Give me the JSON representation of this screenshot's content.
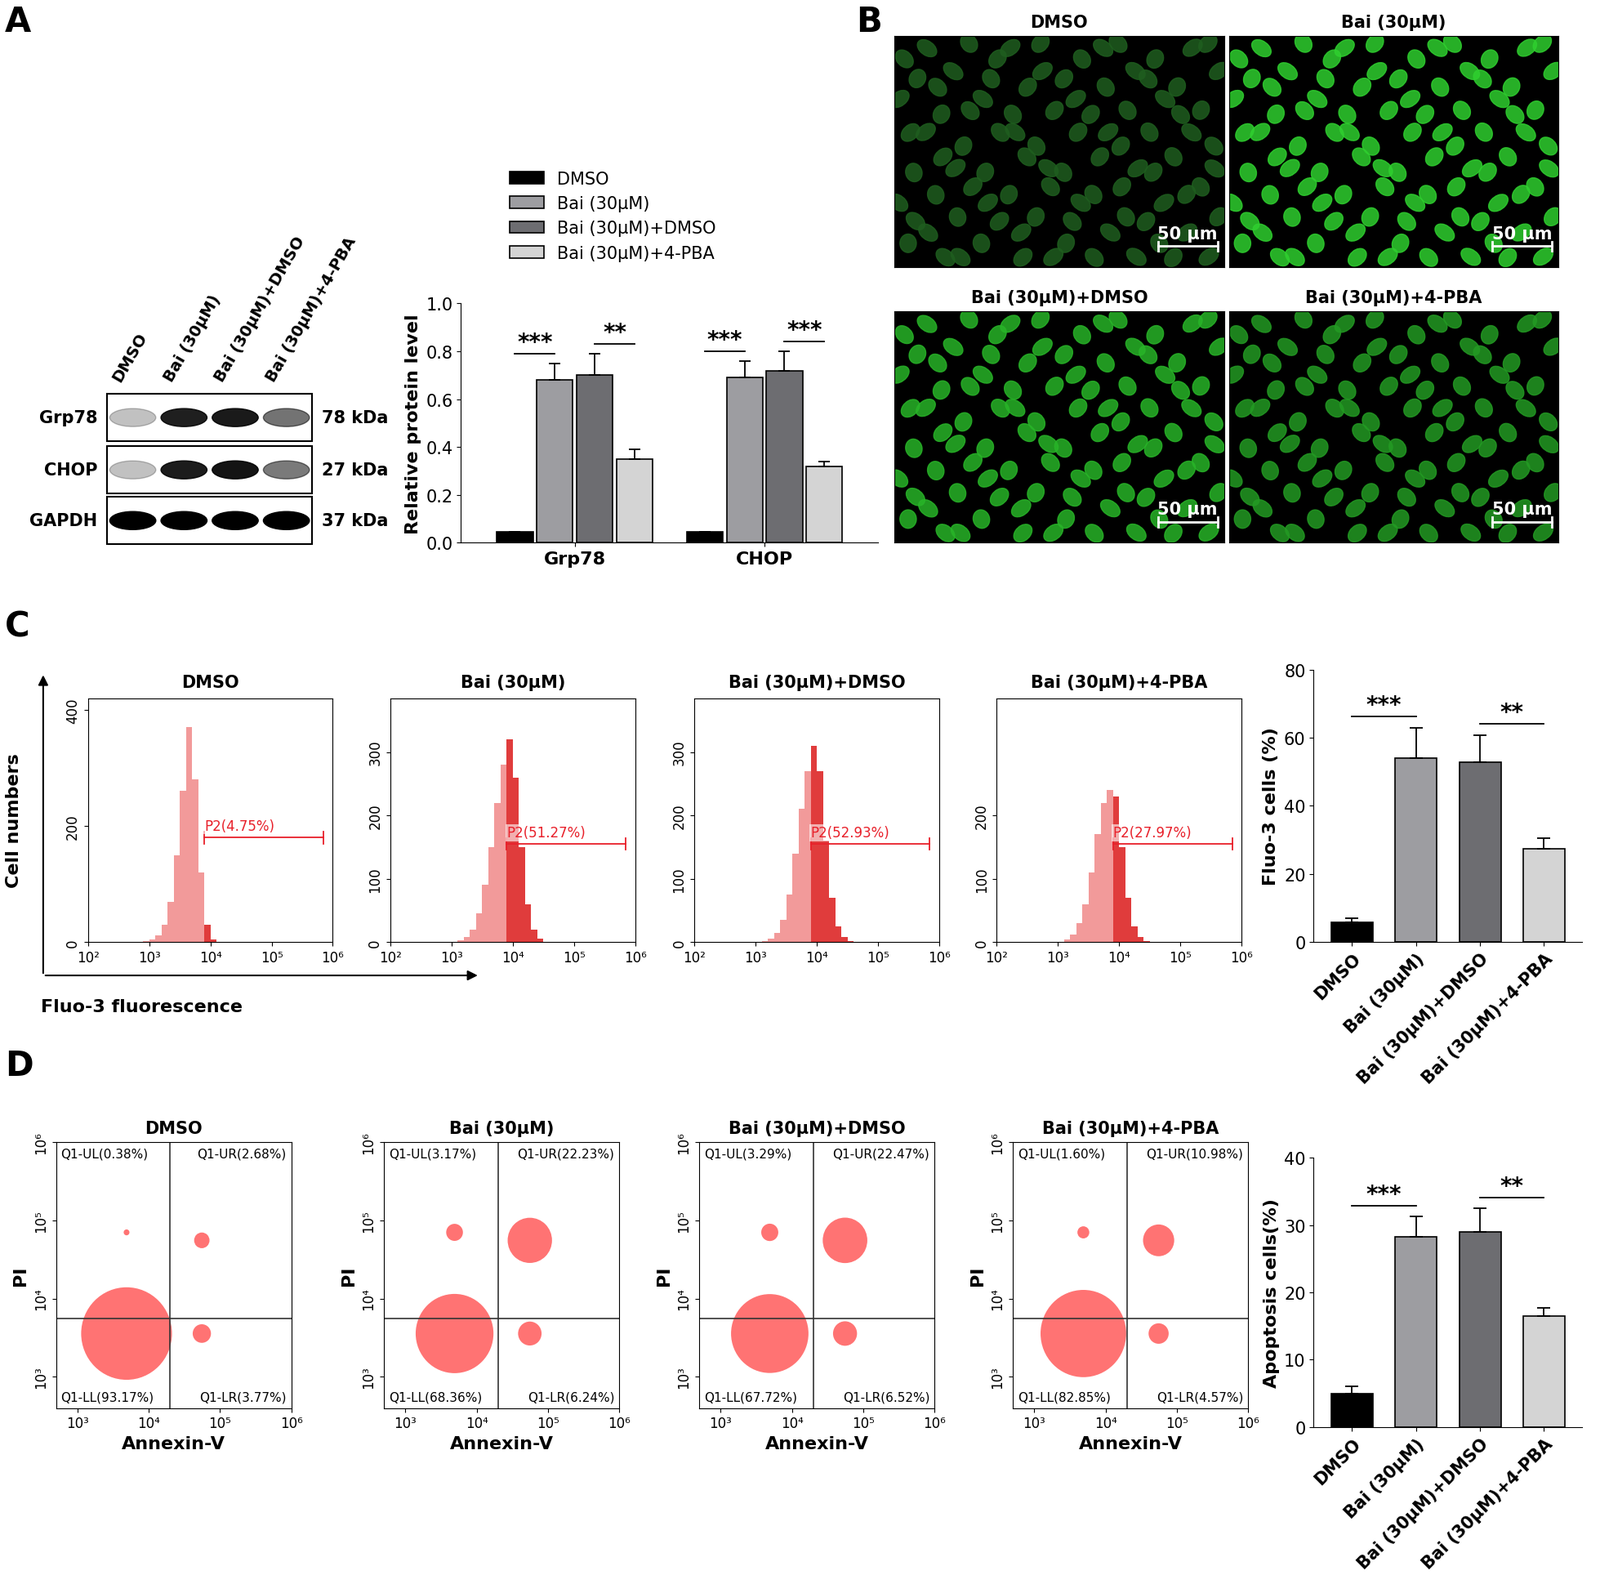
{
  "chart_data": [
    {
      "panel": "A",
      "type": "blot",
      "lanes": [
        "DMSO",
        "Bai (30μM)",
        "Bai (30μM)+DMSO",
        "Bai (30μM)+4-PBA"
      ],
      "rows": [
        {
          "name": "Grp78",
          "size": "78 kDa"
        },
        {
          "name": "CHOP",
          "size": "27 kDa"
        },
        {
          "name": "GAPDH",
          "size": "37 kDa"
        }
      ]
    },
    {
      "type": "bar",
      "ylabel": "Relative protein level",
      "categories": [
        "Grp78",
        "CHOP"
      ],
      "series": [
        {
          "name": "DMSO",
          "color": "#000000",
          "values": [
            0.045,
            0.045
          ],
          "errors": [
            0.0,
            0.0
          ]
        },
        {
          "name": "Bai (30μM)",
          "color": "#9d9da1",
          "values": [
            0.68,
            0.69
          ],
          "errors": [
            0.07,
            0.07
          ]
        },
        {
          "name": "Bai (30μM)+DMSO",
          "color": "#6d6d71",
          "values": [
            0.7,
            0.72
          ],
          "errors": [
            0.09,
            0.08
          ]
        },
        {
          "name": "Bai (30μM)+4-PBA",
          "color": "#d4d4d4",
          "values": [
            0.35,
            0.32
          ],
          "errors": [
            0.04,
            0.02
          ]
        }
      ],
      "ylim": [
        0,
        1.0
      ],
      "yticks": [
        {
          "value": 0,
          "label": "0.0"
        },
        {
          "value": 0.2,
          "label": "0.2"
        },
        {
          "value": 0.4,
          "label": "0.4"
        },
        {
          "value": 0.6,
          "label": "0.6"
        },
        {
          "value": 0.8,
          "label": "0.8"
        },
        {
          "value": 1.0,
          "label": "1.0"
        }
      ],
      "legend": "upper left",
      "significance": [
        {
          "category": "Grp78",
          "between": [
            "DMSO",
            "Bai (30μM)"
          ],
          "label": "***"
        },
        {
          "category": "Grp78",
          "between": [
            "Bai (30μM)+DMSO",
            "Bai (30μM)+4-PBA"
          ],
          "label": "**"
        },
        {
          "category": "CHOP",
          "between": [
            "DMSO",
            "Bai (30μM)"
          ],
          "label": "***"
        },
        {
          "category": "CHOP",
          "between": [
            "Bai (30μM)+DMSO",
            "Bai (30μM)+4-PBA"
          ],
          "label": "***"
        }
      ]
    },
    {
      "panel": "B",
      "type": "image",
      "images": [
        {
          "title": "DMSO",
          "color": "#1f5e1f",
          "scale_bar": "50 μm"
        },
        {
          "title": "Bai (30μM)",
          "color": "#2fcf2f",
          "scale_bar": "50 μm"
        },
        {
          "title": "Bai (30μM)+DMSO",
          "color": "#28b428",
          "scale_bar": "50 μm"
        },
        {
          "title": "Bai (30μM)+4-PBA",
          "color": "#239a23",
          "scale_bar": "50 μm"
        }
      ]
    },
    {
      "panel": "C",
      "type": "histogram",
      "color": "#f29a9a",
      "xlabel": "Fluo-3 fluorescence",
      "ylabel": "Cell numbers",
      "log": "x",
      "xlim": [
        100,
        1000000
      ],
      "xticks": [
        {
          "value": 100,
          "label": "10²"
        },
        {
          "value": 1000,
          "label": "10³"
        },
        {
          "value": 10000,
          "label": "10⁴"
        },
        {
          "value": 100000,
          "label": "10⁵"
        },
        {
          "value": 1000000,
          "label": "10⁶"
        }
      ],
      "bins": [
        631,
        794,
        1000,
        1259,
        1585,
        1995,
        2512,
        3162,
        3981,
        5012,
        6310,
        7943,
        10000,
        12589,
        15849,
        19953,
        25119,
        31623,
        39811,
        50119,
        63096
      ],
      "plots": [
        {
          "title": "DMSO",
          "ylim": [
            0,
            420
          ],
          "yticks": [
            0,
            200,
            400
          ],
          "counts": [
            0,
            2,
            5,
            12,
            30,
            70,
            150,
            260,
            370,
            280,
            120,
            30,
            5,
            1,
            0,
            0,
            0,
            0,
            0,
            0
          ],
          "gate": {
            "label": "P2(4.75%)",
            "range": [
              7943,
              700000
            ],
            "y": 180
          }
        },
        {
          "title": "Bai (30μM)",
          "ylim": [
            0,
            385
          ],
          "yticks": [
            0,
            100,
            200,
            300
          ],
          "counts": [
            0,
            0,
            1,
            3,
            8,
            20,
            45,
            90,
            150,
            220,
            280,
            320,
            260,
            150,
            60,
            20,
            5,
            1,
            0,
            0
          ],
          "gate": {
            "label": "P2(51.27%)",
            "range": [
              7943,
              700000
            ],
            "y": 155
          }
        },
        {
          "title": "Bai (30μM)+DMSO",
          "ylim": [
            0,
            385
          ],
          "yticks": [
            0,
            100,
            200,
            300
          ],
          "counts": [
            0,
            0,
            0,
            2,
            6,
            15,
            35,
            75,
            140,
            210,
            270,
            310,
            270,
            160,
            70,
            25,
            8,
            2,
            0,
            0
          ],
          "gate": {
            "label": "P2(52.93%)",
            "range": [
              7943,
              700000
            ],
            "y": 155
          }
        },
        {
          "title": "Bai (30μM)+4-PBA",
          "ylim": [
            0,
            385
          ],
          "yticks": [
            0,
            100,
            200
          ],
          "counts": [
            0,
            0,
            1,
            4,
            12,
            30,
            60,
            110,
            170,
            220,
            240,
            230,
            150,
            70,
            25,
            8,
            2,
            0,
            0,
            0
          ],
          "gate": {
            "label": "P2(27.97%)",
            "range": [
              7943,
              700000
            ],
            "y": 155
          }
        }
      ]
    },
    {
      "type": "bar",
      "ylabel": "Fluo-3 cells (%)",
      "categories": [
        "DMSO",
        "Bai (30μM)",
        "Bai (30μM)+DMSO",
        "Bai (30μM)+4-PBA"
      ],
      "values": [
        5.8,
        54,
        52.8,
        27.5
      ],
      "errors": [
        1.2,
        9,
        8,
        3
      ],
      "colors": [
        "#000000",
        "#9d9da1",
        "#6d6d71",
        "#d4d4d4"
      ],
      "ylim": [
        0,
        80
      ],
      "yticks": [
        0,
        20,
        40,
        60,
        80
      ],
      "significance": [
        {
          "between": [
            "DMSO",
            "Bai (30μM)"
          ],
          "label": "***"
        },
        {
          "between": [
            "Bai (30μM)+DMSO",
            "Bai (30μM)+4-PBA"
          ],
          "label": "**"
        }
      ]
    },
    {
      "panel": "D",
      "type": "scatter",
      "color": "#ff0000",
      "log": true,
      "xlabel": "Annexin-V",
      "ylabel": "PI",
      "xlim": [
        500,
        1000000
      ],
      "ylim": [
        400,
        1000000
      ],
      "xticks": [
        {
          "value": 1000,
          "label": "10³"
        },
        {
          "value": 10000,
          "label": "10⁴"
        },
        {
          "value": 100000,
          "label": "10⁵"
        },
        {
          "value": 1000000,
          "label": "10⁶"
        }
      ],
      "yticks": [
        {
          "value": 1000,
          "label": "10³"
        },
        {
          "value": 10000,
          "label": "10⁴"
        },
        {
          "value": 100000,
          "label": "10⁵"
        },
        {
          "value": 1000000,
          "label": "10⁶"
        }
      ],
      "quadrant_x": 20000,
      "quadrant_y": 5600,
      "plots": [
        {
          "title": "DMSO",
          "quadrants": {
            "UL": {
              "label": "Q1-UL(0.38%)",
              "value": 0.38
            },
            "UR": {
              "label": "Q1-UR(2.68%)",
              "value": 2.68
            },
            "LL": {
              "label": "Q1-LL(93.17%)",
              "value": 93.17
            },
            "LR": {
              "label": "Q1-LR(3.77%)",
              "value": 3.77
            }
          }
        },
        {
          "title": "Bai (30μM)",
          "quadrants": {
            "UL": {
              "label": "Q1-UL(3.17%)",
              "value": 3.17
            },
            "UR": {
              "label": "Q1-UR(22.23%)",
              "value": 22.23
            },
            "LL": {
              "label": "Q1-LL(68.36%)",
              "value": 68.36
            },
            "LR": {
              "label": "Q1-LR(6.24%)",
              "value": 6.24
            }
          }
        },
        {
          "title": "Bai (30μM)+DMSO",
          "quadrants": {
            "UL": {
              "label": "Q1-UL(3.29%)",
              "value": 3.29
            },
            "UR": {
              "label": "Q1-UR(22.47%)",
              "value": 22.47
            },
            "LL": {
              "label": "Q1-LL(67.72%)",
              "value": 67.72
            },
            "LR": {
              "label": "Q1-LR(6.52%)",
              "value": 6.52
            }
          }
        },
        {
          "title": "Bai (30μM)+4-PBA",
          "quadrants": {
            "UL": {
              "label": "Q1-UL(1.60%)",
              "value": 1.6
            },
            "UR": {
              "label": "Q1-UR(10.98%)",
              "value": 10.98
            },
            "LL": {
              "label": "Q1-LL(82.85%)",
              "value": 82.85
            },
            "LR": {
              "label": "Q1-LR(4.57%)",
              "value": 4.57
            }
          }
        }
      ]
    },
    {
      "type": "bar",
      "ylabel": "Apoptosis cells(%)",
      "categories": [
        "DMSO",
        "Bai (30μM)",
        "Bai (30μM)+DMSO",
        "Bai (30μM)+4-PBA"
      ],
      "values": [
        5.0,
        28.3,
        29.0,
        16.5
      ],
      "errors": [
        1.0,
        3.0,
        3.5,
        1.2
      ],
      "colors": [
        "#000000",
        "#9d9da1",
        "#6d6d71",
        "#d4d4d4"
      ],
      "ylim": [
        0,
        40
      ],
      "yticks": [
        0,
        10,
        20,
        30,
        40
      ],
      "significance": [
        {
          "between": [
            "DMSO",
            "Bai (30μM)"
          ],
          "label": "***"
        },
        {
          "between": [
            "Bai (30μM)+DMSO",
            "Bai (30μM)+4-PBA"
          ],
          "label": "**"
        }
      ]
    }
  ]
}
